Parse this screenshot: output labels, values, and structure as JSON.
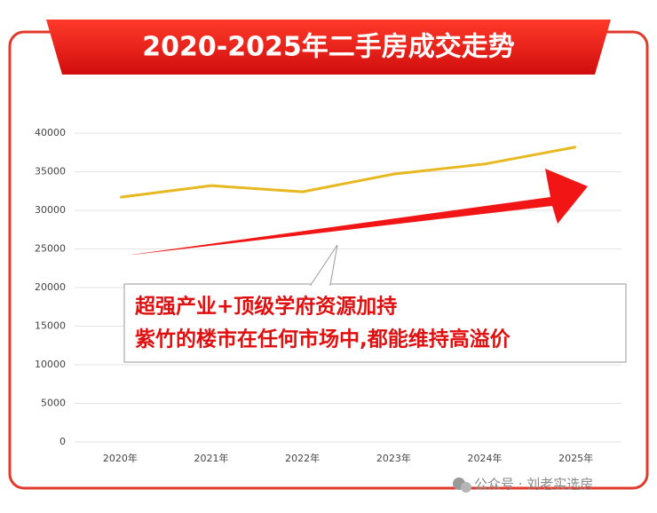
{
  "chart_data": {
    "type": "line",
    "title": "2020-2025年二手房成交走势",
    "categories": [
      "2020年",
      "2021年",
      "2022年",
      "2023年",
      "2024年",
      "2025年"
    ],
    "values": [
      31700,
      33200,
      32400,
      34700,
      36000,
      38200
    ],
    "color": "#e8b820",
    "ylim": [
      0,
      40000
    ],
    "yticks": [
      0,
      5000,
      10000,
      15000,
      20000,
      25000,
      30000,
      35000,
      40000
    ],
    "grid": true,
    "annotations": [
      "超强产业+顶级学府资源加持",
      "紫竹的楼市在任何市场中,都能维持高溢价"
    ]
  },
  "watermark": "公众号 · 刘老实选房"
}
